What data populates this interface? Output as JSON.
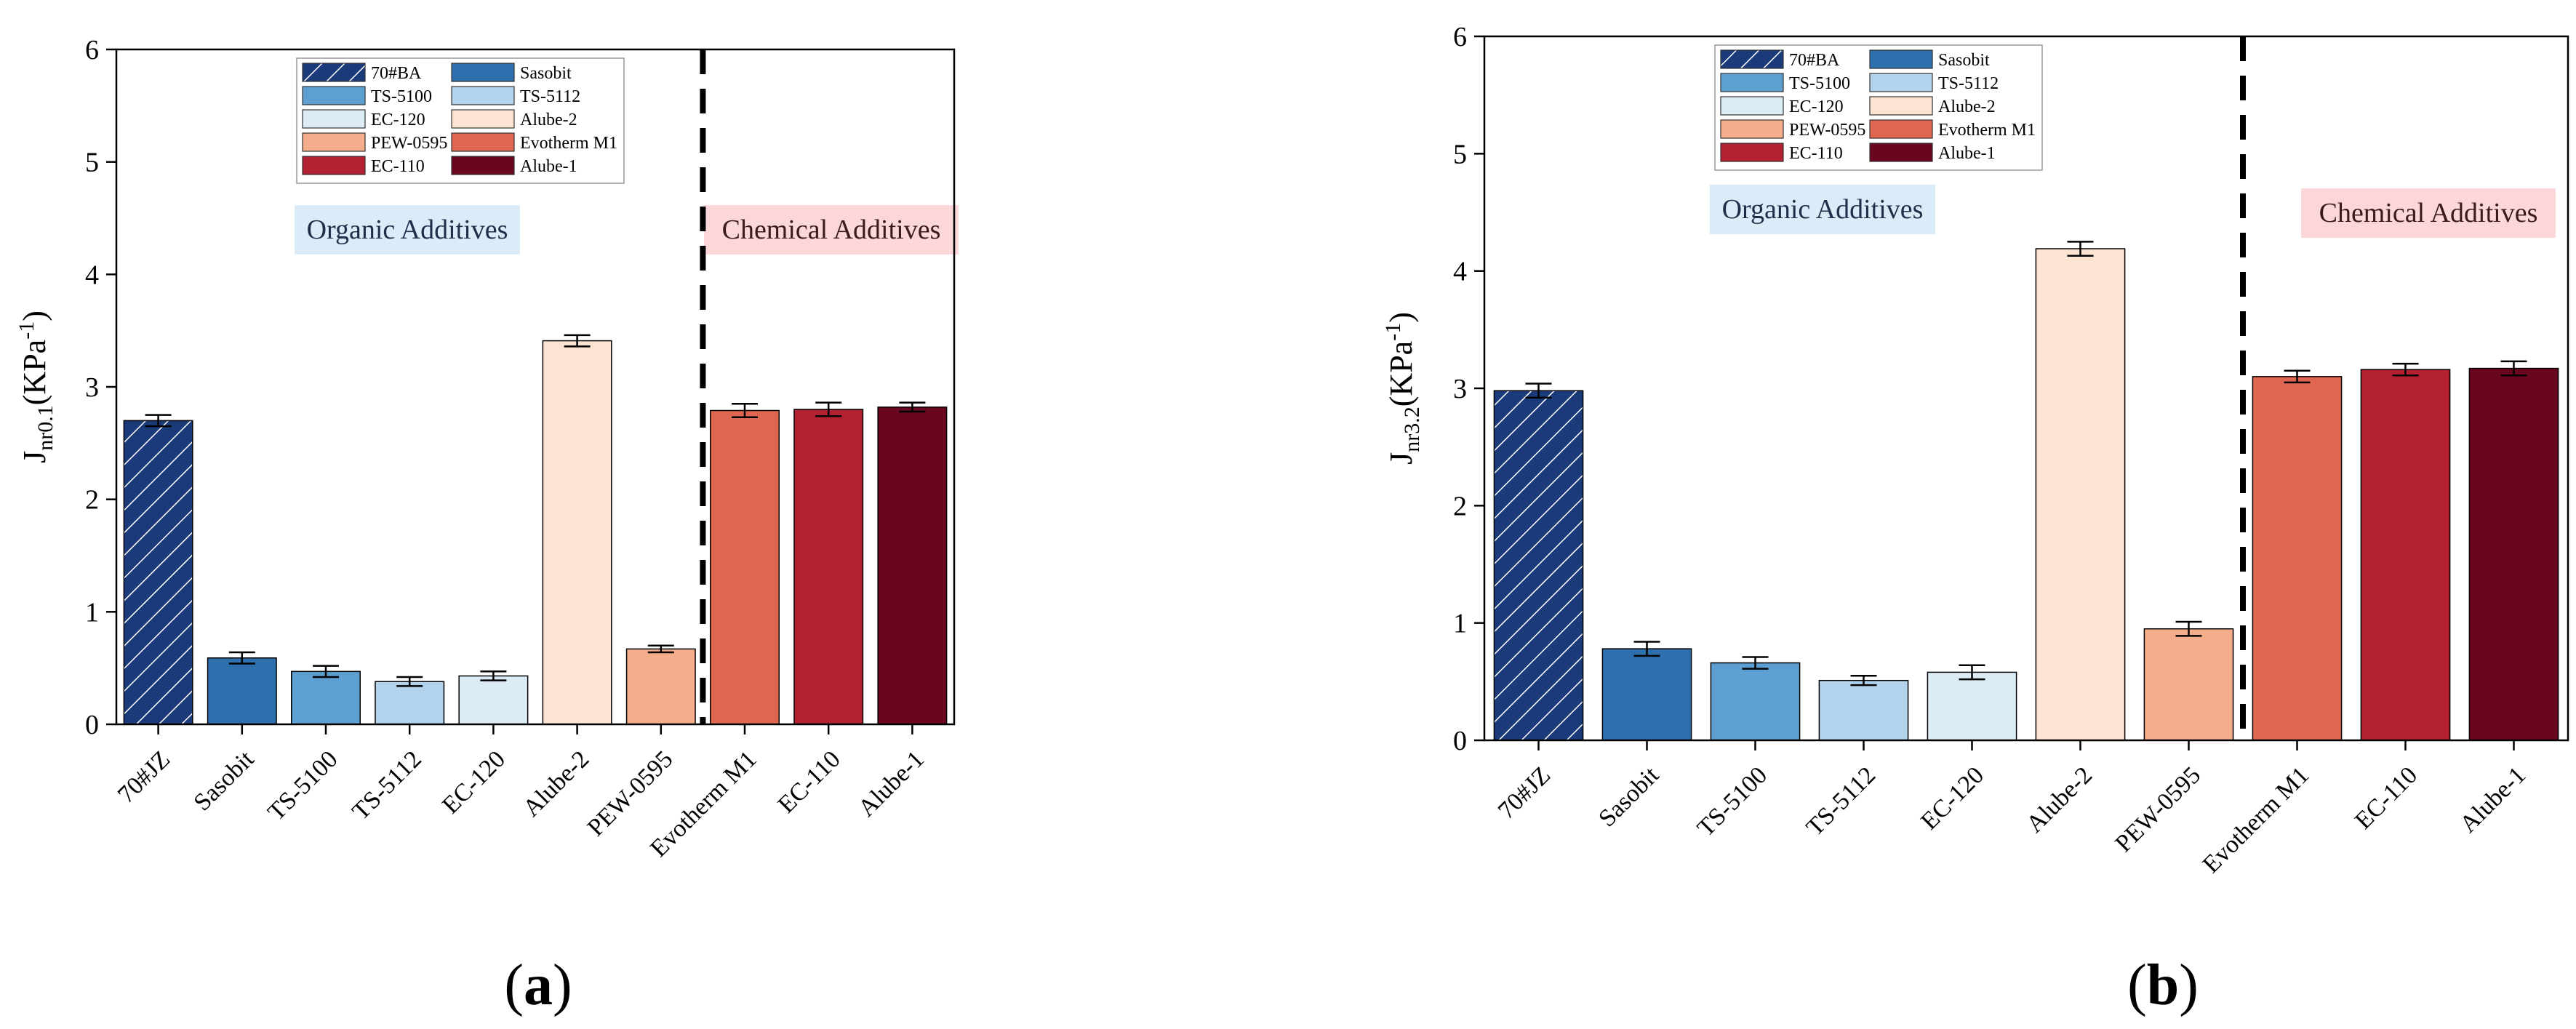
{
  "figure": {
    "palette": {
      "70#BA": "#1a3a7a",
      "Sasobit": "#2e6fad",
      "TS-5100": "#5e9fd2",
      "TS-5112": "#b3d3ec",
      "EC-120": "#dcecf7",
      "Alube-2": "#fde4d2",
      "PEW-0595": "#f4ae8c",
      "Evotherm M1": "#df6650",
      "EC-110": "#b32032",
      "Alube-1": "#6a0620"
    },
    "legend": [
      "70#BA",
      "Sasobit",
      "TS-5100",
      "TS-5112",
      "EC-120",
      "Alube-2",
      "PEW-0595",
      "Evotherm M1",
      "EC-110",
      "Alube-1"
    ],
    "group_labels": {
      "organic": "Organic Additives",
      "chemical": "Chemical Additives",
      "organic_bg": "#d9ecf7",
      "chemical_bg": "#fbd7da"
    }
  },
  "chart_data": [
    {
      "panel": "a",
      "panel_label_open": "(",
      "panel_label_letter": "a",
      "panel_label_close": ")",
      "type": "bar",
      "ylabel_main": "J",
      "ylabel_sub": "nr0.1",
      "ylabel_unit": "(KPa",
      "ylabel_sup": "-1",
      "ylabel_close": ")",
      "ylim": [
        0,
        6
      ],
      "yticks": [
        "0",
        "1",
        "2",
        "3",
        "4",
        "5",
        "6"
      ],
      "categories": [
        "70#JZ",
        "Sasobit",
        "TS-5100",
        "TS-5112",
        "EC-120",
        "Alube-2",
        "PEW-0595",
        "Evotherm M1",
        "EC-110",
        "Alube-1"
      ],
      "values": [
        2.7,
        0.59,
        0.47,
        0.38,
        0.43,
        3.41,
        0.67,
        2.79,
        2.8,
        2.82
      ],
      "errors": [
        0.05,
        0.05,
        0.05,
        0.04,
        0.04,
        0.05,
        0.03,
        0.06,
        0.06,
        0.04
      ],
      "divider_after_index": 6
    },
    {
      "panel": "b",
      "panel_label_open": "(",
      "panel_label_letter": "b",
      "panel_label_close": ")",
      "type": "bar",
      "ylabel_main": "J",
      "ylabel_sub": "nr3.2",
      "ylabel_unit": "(KPa",
      "ylabel_sup": "-1",
      "ylabel_close": ")",
      "ylim": [
        0,
        6
      ],
      "yticks": [
        "0",
        "1",
        "2",
        "3",
        "4",
        "5",
        "6"
      ],
      "categories": [
        "70#JZ",
        "Sasobit",
        "TS-5100",
        "TS-5112",
        "EC-120",
        "Alube-2",
        "PEW-0595",
        "Evotherm M1",
        "EC-110",
        "Alube-1"
      ],
      "values": [
        2.98,
        0.78,
        0.66,
        0.51,
        0.58,
        4.19,
        0.95,
        3.1,
        3.16,
        3.17
      ],
      "errors": [
        0.06,
        0.06,
        0.05,
        0.04,
        0.06,
        0.06,
        0.06,
        0.05,
        0.05,
        0.06
      ],
      "divider_after_index": 6
    }
  ]
}
